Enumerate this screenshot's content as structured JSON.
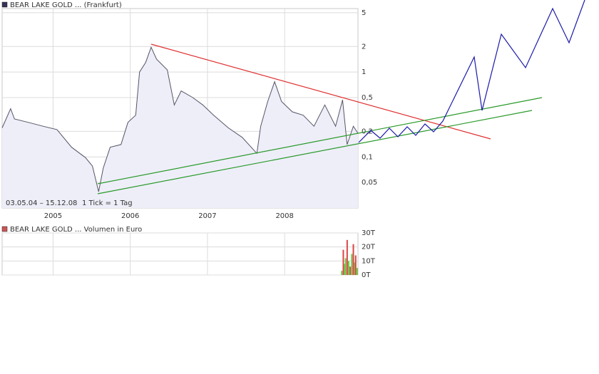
{
  "chart_data": [
    {
      "type": "line",
      "log_y": true,
      "grid": true,
      "legend": "BEAR LAKE GOLD ... (Frankfurt)",
      "legend_color": "#333355",
      "date_range": "03.05.04 – 15.12.08",
      "tick_note": "1 Tick = 1 Tag",
      "color": "#555566",
      "area_color": "#eeeef9",
      "xlim": [
        2004.34,
        2008.95
      ],
      "xticks": [
        2005,
        2006,
        2007,
        2008
      ],
      "ylim": [
        0.025,
        5.6
      ],
      "yticks": [
        5,
        2,
        1,
        {
          "value": 0.5,
          "label": "0,5"
        },
        {
          "value": 0.2,
          "label": "0,2"
        },
        {
          "value": 0.1,
          "label": "0,1"
        },
        {
          "value": 0.05,
          "label": "0,05"
        }
      ],
      "x": [
        2004.34,
        2004.45,
        2004.5,
        2004.68,
        2004.87,
        2005.05,
        2005.24,
        2005.42,
        2005.51,
        2005.59,
        2005.65,
        2005.74,
        2005.88,
        2005.97,
        2006.07,
        2006.12,
        2006.2,
        2006.27,
        2006.34,
        2006.48,
        2006.57,
        2006.66,
        2006.81,
        2006.94,
        2007.08,
        2007.27,
        2007.45,
        2007.64,
        2007.69,
        2007.78,
        2007.87,
        2007.96,
        2008.1,
        2008.24,
        2008.38,
        2008.52,
        2008.66,
        2008.75,
        2008.81,
        2008.89,
        2008.95
      ],
      "values": [
        0.22,
        0.37,
        0.28,
        0.255,
        0.23,
        0.21,
        0.13,
        0.098,
        0.078,
        0.039,
        0.074,
        0.13,
        0.14,
        0.255,
        0.31,
        1.0,
        1.3,
        1.96,
        1.42,
        1.06,
        0.41,
        0.6,
        0.5,
        0.41,
        0.31,
        0.22,
        0.17,
        0.11,
        0.23,
        0.45,
        0.77,
        0.45,
        0.34,
        0.31,
        0.23,
        0.41,
        0.23,
        0.47,
        0.14,
        0.23,
        0.19
      ]
    },
    {
      "type": "bar",
      "grid": true,
      "legend": "BEAR LAKE GOLD ... Volumen in Euro",
      "legend_color": "#cc5555",
      "xlim": [
        2004.34,
        2008.95
      ],
      "xticks": [
        2005,
        2006,
        2007,
        2008
      ],
      "ylim": [
        0,
        30000
      ],
      "yticks": [
        {
          "value": 30000,
          "label": "30T"
        },
        {
          "value": 20000,
          "label": "20T"
        },
        {
          "value": 10000,
          "label": "10T"
        },
        {
          "value": 0,
          "label": "0T"
        }
      ],
      "x": [
        2008.74,
        2008.76,
        2008.78,
        2008.79,
        2008.81,
        2008.83,
        2008.85,
        2008.87,
        2008.89,
        2008.91,
        2008.92,
        2008.94
      ],
      "values": [
        3000,
        18000,
        8000,
        12000,
        25000,
        10000,
        6000,
        15000,
        22000,
        9000,
        14000,
        5000
      ],
      "colors": [
        "#66cc44",
        "#dd4444",
        "#66cc44",
        "#66cc44",
        "#dd4444",
        "#66cc44",
        "#dd4444",
        "#66cc44",
        "#dd4444",
        "#66cc44",
        "#dd4444",
        "#66cc44"
      ]
    }
  ]
}
